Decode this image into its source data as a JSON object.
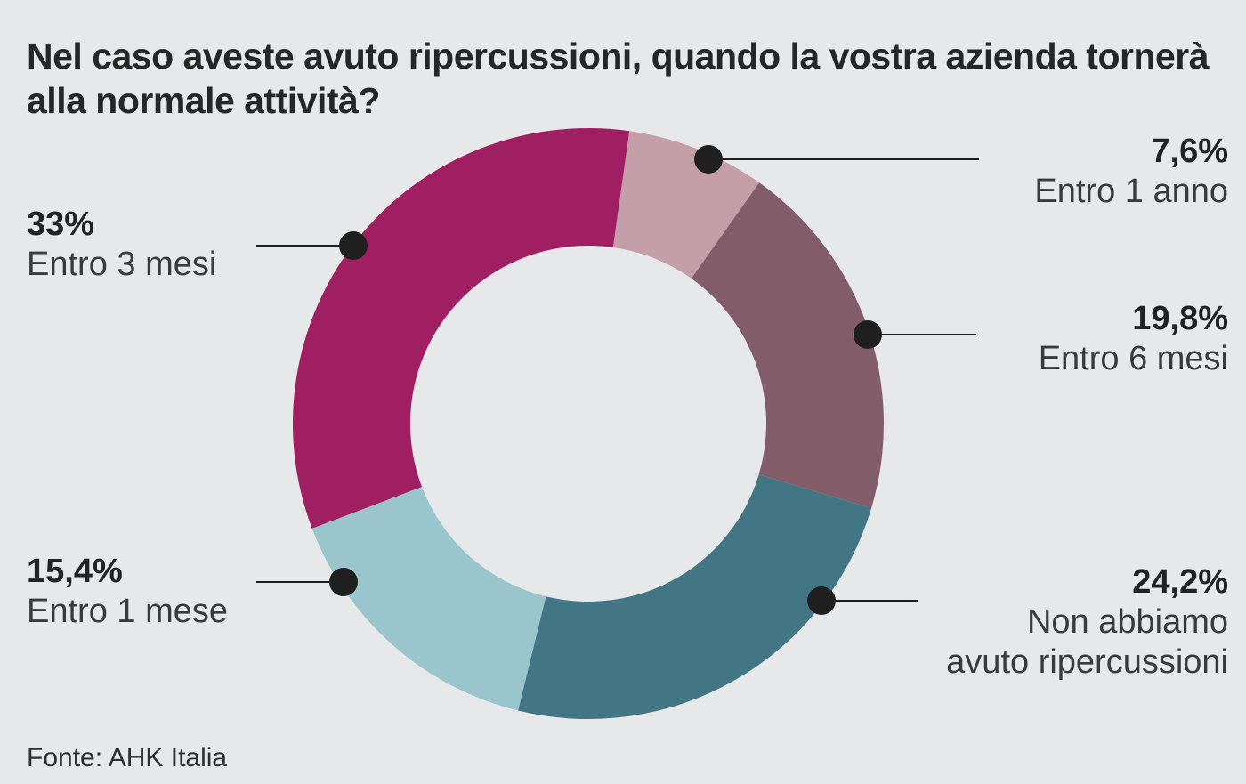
{
  "title": "Nel caso aveste avuto ripercussioni, quando la vostra azienda tornerà alla normale attività?",
  "source": "Fonte: AHK Italia",
  "chart_data": {
    "type": "pie",
    "variant": "donut",
    "start": "top",
    "direction": "clockwise",
    "slices": [
      {
        "label": "Entro 1 anno",
        "value": 7.6,
        "display": "7,6%",
        "color": "#c49ea8"
      },
      {
        "label": "Entro 6 mesi",
        "value": 19.8,
        "display": "19,8%",
        "color": "#825c69"
      },
      {
        "label": "Non abbiamo avuto ripercussioni",
        "value": 24.2,
        "display": "24,2%",
        "color": "#427685"
      },
      {
        "label": "Entro 1 mese",
        "value": 15.4,
        "display": "15,4%",
        "color": "#9ac5cd"
      },
      {
        "label": "Entro 3 mesi",
        "value": 33,
        "display": "33%",
        "color": "#a01f63"
      }
    ]
  },
  "labels": {
    "entro_1_anno": {
      "pct": "7,6%",
      "name": "Entro 1 anno"
    },
    "entro_6_mesi": {
      "pct": "19,8%",
      "name": "Entro 6 mesi"
    },
    "nessuna": {
      "pct": "24,2%",
      "line1": "Non abbiamo",
      "line2": "avuto ripercussioni"
    },
    "entro_1_mese": {
      "pct": "15,4%",
      "name": "Entro 1 mese"
    },
    "entro_3_mesi": {
      "pct": "33%",
      "name": "Entro 3 mesi"
    }
  },
  "colors": {
    "background": "#e7e8ea",
    "leader": "#1f1f1f"
  }
}
